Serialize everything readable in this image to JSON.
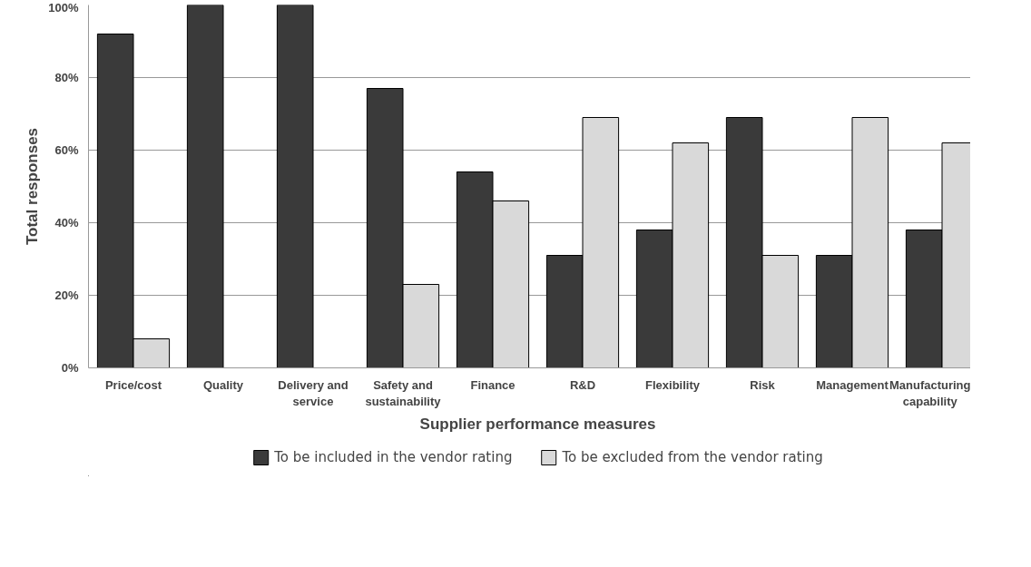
{
  "chart_data": {
    "type": "bar",
    "xlabel": "Supplier performance measures",
    "ylabel": "Total responses",
    "categories": [
      "Price/cost",
      "Quality",
      "Delivery and service",
      "Safety and sustainability",
      "Finance",
      "R&D",
      "Flexibility",
      "Risk",
      "Management",
      "Manufacturing capability"
    ],
    "series": [
      {
        "name": "To be included in the vendor rating",
        "color": "#3a3a3a",
        "values": [
          92,
          100,
          100,
          77,
          54,
          31,
          38,
          69,
          31,
          38
        ]
      },
      {
        "name": "To be excluded from the vendor rating",
        "color": "#d9d9d9",
        "values": [
          8,
          0,
          0,
          23,
          46,
          69,
          62,
          31,
          69,
          62
        ]
      }
    ],
    "ylim": [
      0,
      100
    ],
    "yticks": [
      {
        "value": 0,
        "label": "0%"
      },
      {
        "value": 20,
        "label": "20%"
      },
      {
        "value": 40,
        "label": "40%"
      },
      {
        "value": 60,
        "label": "60%"
      },
      {
        "value": 80,
        "label": "80%"
      },
      {
        "value": 100,
        "label": "100%"
      }
    ],
    "grid": "y",
    "legend": "bottom"
  }
}
